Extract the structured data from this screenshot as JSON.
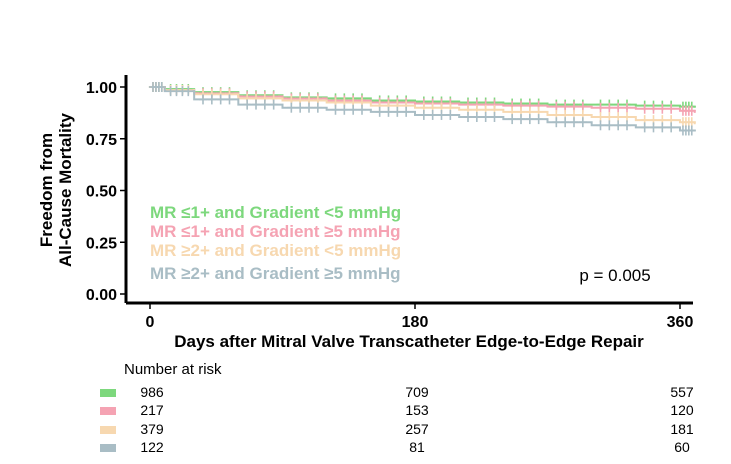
{
  "chart_data": {
    "type": "line",
    "subtype": "kaplan-meier",
    "title": "",
    "xlabel": "Days after Mitral Valve Transcatheter Edge-to-Edge Repair",
    "ylabel_lines": [
      "Freedom from",
      "All-Cause Mortality"
    ],
    "xlim": [
      0,
      370
    ],
    "ylim": [
      0,
      1.05
    ],
    "x_ticks": [
      0,
      180,
      360
    ],
    "x_tick_labels": [
      "0",
      "180",
      "360"
    ],
    "y_ticks": [
      0,
      0.25,
      0.5,
      0.75,
      1.0
    ],
    "y_tick_labels": [
      "0.00",
      "0.25",
      "0.50",
      "0.75",
      "1.00"
    ],
    "legend_placement": "bottom-left",
    "annotation": "p = 0.005",
    "series": [
      {
        "name": "MR ≤1+ and Gradient <5 mmHg",
        "color": "#7dd87d",
        "x": [
          0,
          10,
          30,
          60,
          90,
          120,
          150,
          180,
          210,
          240,
          270,
          300,
          330,
          360,
          370
        ],
        "y": [
          1.0,
          0.99,
          0.975,
          0.96,
          0.95,
          0.945,
          0.935,
          0.93,
          0.925,
          0.92,
          0.915,
          0.915,
          0.91,
          0.905,
          0.9
        ]
      },
      {
        "name": "MR ≤1+ and Gradient ≥5 mmHg",
        "color": "#f5a3b3",
        "x": [
          0,
          10,
          30,
          60,
          90,
          120,
          150,
          180,
          210,
          240,
          270,
          300,
          330,
          360,
          370
        ],
        "y": [
          1.0,
          0.985,
          0.97,
          0.955,
          0.945,
          0.935,
          0.925,
          0.92,
          0.915,
          0.91,
          0.905,
          0.9,
          0.895,
          0.885,
          0.875
        ]
      },
      {
        "name": "MR ≥2+ and Gradient <5 mmHg",
        "color": "#f7d8b0",
        "x": [
          0,
          10,
          30,
          60,
          90,
          120,
          150,
          180,
          210,
          240,
          270,
          300,
          330,
          360,
          370
        ],
        "y": [
          1.0,
          0.985,
          0.965,
          0.945,
          0.935,
          0.925,
          0.91,
          0.9,
          0.89,
          0.88,
          0.865,
          0.855,
          0.84,
          0.83,
          0.82
        ]
      },
      {
        "name": "MR ≥2+ and Gradient ≥5 mmHg",
        "color": "#a9bdc5",
        "x": [
          0,
          10,
          30,
          60,
          90,
          120,
          150,
          180,
          210,
          240,
          270,
          300,
          330,
          360,
          370
        ],
        "y": [
          1.0,
          0.98,
          0.94,
          0.915,
          0.9,
          0.89,
          0.88,
          0.865,
          0.855,
          0.845,
          0.83,
          0.815,
          0.805,
          0.79,
          0.785
        ]
      }
    ],
    "risk_table": {
      "title": "Number at risk",
      "times": [
        0,
        180,
        360
      ],
      "rows": [
        {
          "color": "#7dd87d",
          "values": [
            986,
            709,
            557
          ]
        },
        {
          "color": "#f5a3b3",
          "values": [
            217,
            153,
            120
          ]
        },
        {
          "color": "#f7d8b0",
          "values": [
            379,
            257,
            181
          ]
        },
        {
          "color": "#a9bdc5",
          "values": [
            122,
            81,
            60
          ]
        }
      ]
    }
  }
}
